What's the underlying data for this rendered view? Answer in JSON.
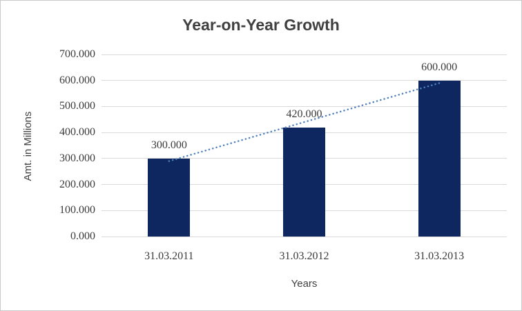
{
  "chart_data": {
    "type": "bar",
    "title": "Year-on-Year Growth",
    "xlabel": "Years",
    "ylabel": "Amt. in Millions",
    "categories": [
      "31.03.2011",
      "31.03.2012",
      "31.03.2013"
    ],
    "values": [
      300,
      420,
      600
    ],
    "data_labels": [
      "300.000",
      "420.000",
      "600.000"
    ],
    "y_ticks": [
      {
        "value": 0,
        "label": "0.000"
      },
      {
        "value": 100,
        "label": "100.000"
      },
      {
        "value": 200,
        "label": "200.000"
      },
      {
        "value": 300,
        "label": "300.000"
      },
      {
        "value": 400,
        "label": "400.000"
      },
      {
        "value": 500,
        "label": "500.000"
      },
      {
        "value": 600,
        "label": "600.000"
      },
      {
        "value": 700,
        "label": "700.000"
      }
    ],
    "ylim": [
      0,
      700
    ],
    "grid": true,
    "legend": "none",
    "trendline": {
      "type": "linear",
      "style": "dotted",
      "color": "#4F81BD"
    },
    "colors": {
      "bar": "#0E2760",
      "grid": "#D9D9D9",
      "title_text": "#404040",
      "tick_text": "#3A3A3A",
      "border": "#C9C9C9"
    }
  }
}
